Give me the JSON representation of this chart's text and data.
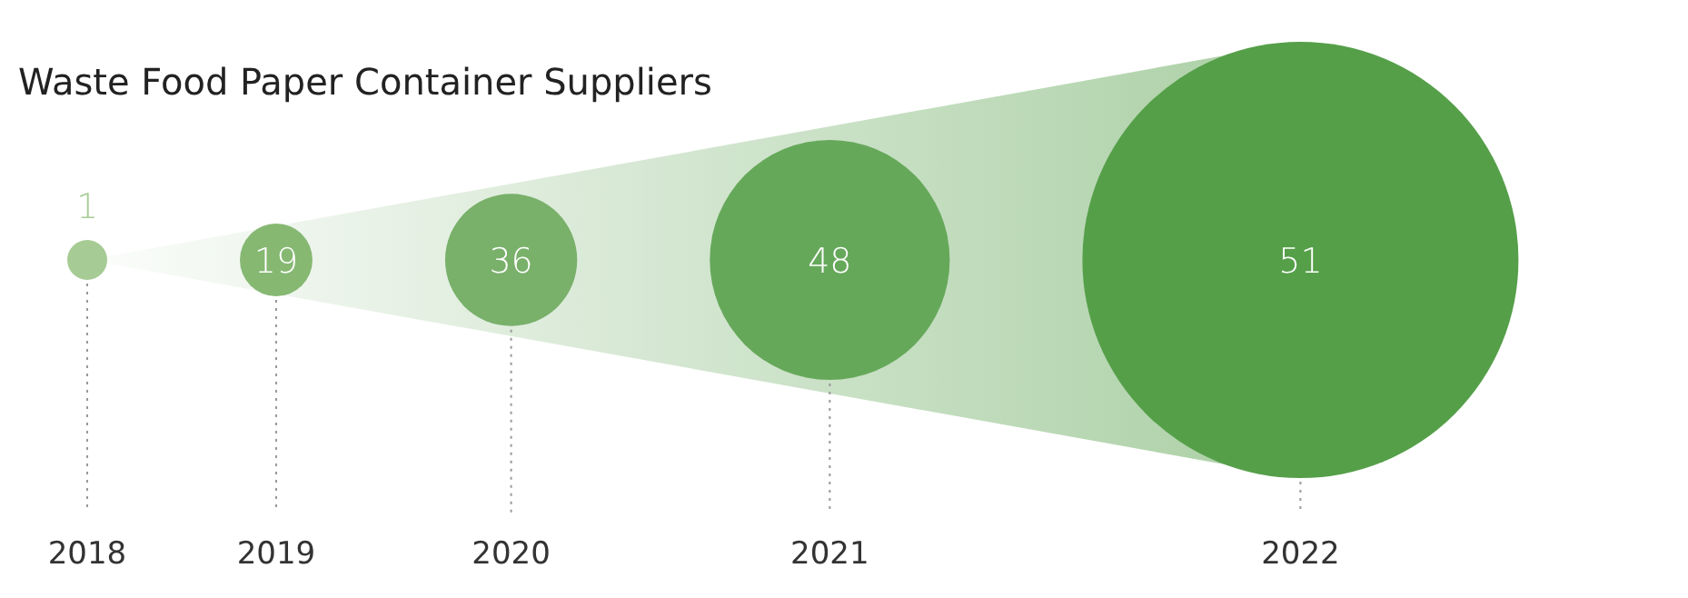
{
  "chart_data": {
    "type": "other",
    "title": "Waste Food Paper Container Suppliers",
    "categories": [
      "2018",
      "2019",
      "2020",
      "2021",
      "2022"
    ],
    "values": [
      1,
      19,
      36,
      48,
      51
    ],
    "colors": [
      "#a7cb95",
      "#86b872",
      "#79b06a",
      "#66a85a",
      "#559f49"
    ],
    "data_labels": true
  }
}
